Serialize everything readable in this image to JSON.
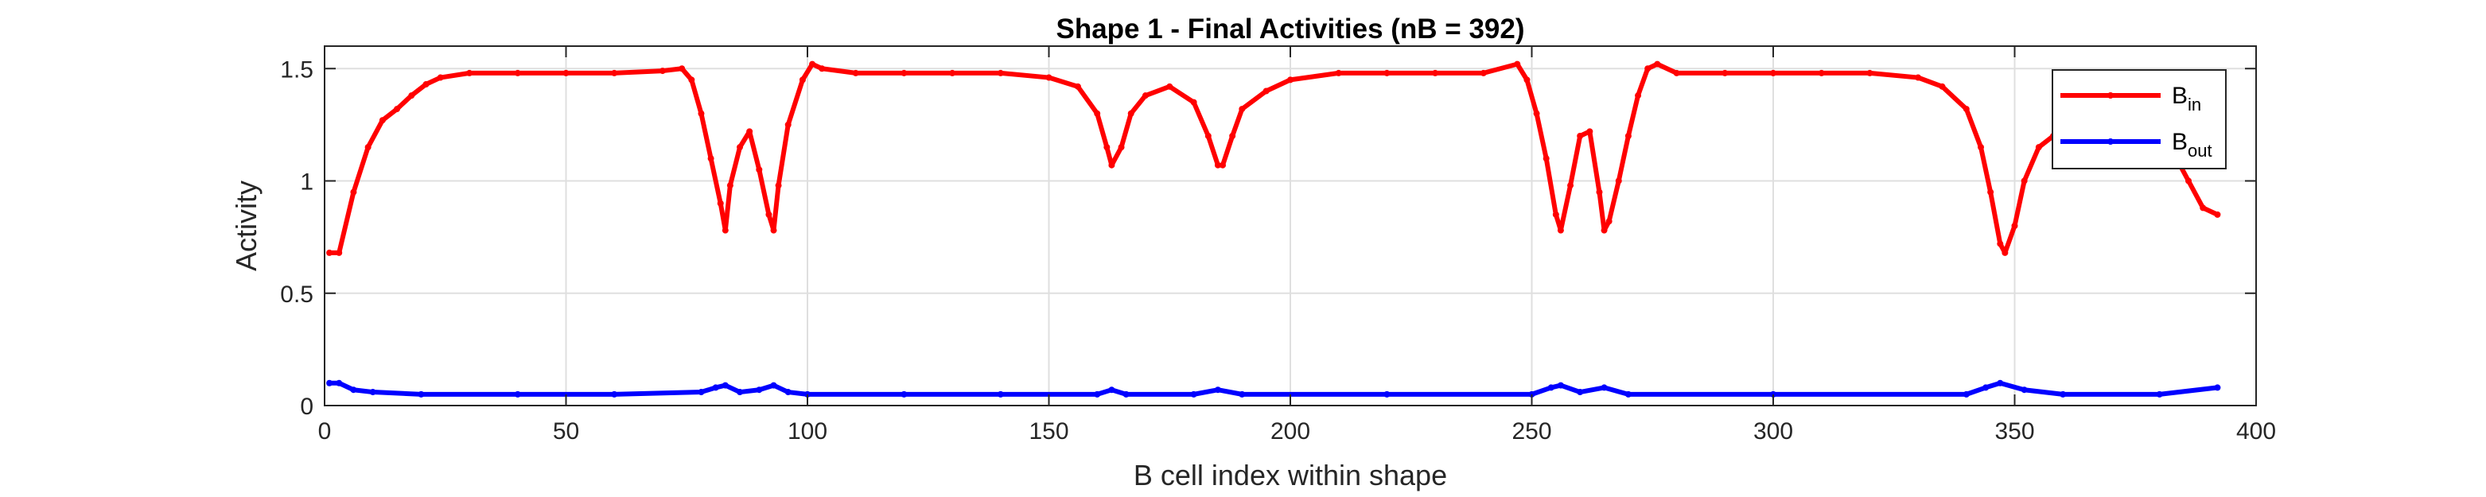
{
  "chart_data": {
    "type": "line",
    "title": "Shape 1 - Final Activities (nB = 392)",
    "xlabel": "B cell index within shape",
    "ylabel": "Activity",
    "xlim": [
      0,
      400
    ],
    "ylim": [
      0,
      1.6
    ],
    "xticks": [
      0,
      50,
      100,
      150,
      200,
      250,
      300,
      350,
      400
    ],
    "yticks": [
      0,
      0.5,
      1,
      1.5
    ],
    "xtick_labels": [
      "0",
      "50",
      "100",
      "150",
      "200",
      "250",
      "300",
      "350",
      "400"
    ],
    "ytick_labels": [
      "0",
      "0.5",
      "1",
      "1.5"
    ],
    "grid": true,
    "legend_position": "top-right",
    "n_points": 392,
    "series": [
      {
        "name": "B",
        "subscript": "in",
        "color": "#ff0000",
        "marker": "dot",
        "x": [
          1,
          3,
          6,
          9,
          12,
          15,
          18,
          21,
          24,
          30,
          40,
          50,
          60,
          70,
          74,
          76,
          78,
          80,
          82,
          83,
          84,
          86,
          88,
          90,
          92,
          93,
          94,
          96,
          99,
          101,
          103,
          110,
          120,
          130,
          140,
          150,
          156,
          160,
          162,
          163,
          165,
          167,
          170,
          175,
          180,
          183,
          185,
          186,
          188,
          190,
          195,
          200,
          210,
          220,
          230,
          240,
          247,
          249,
          251,
          253,
          255,
          256,
          258,
          260,
          262,
          264,
          265,
          266,
          268,
          270,
          272,
          274,
          276,
          280,
          290,
          300,
          310,
          320,
          330,
          335,
          340,
          343,
          345,
          347,
          348,
          350,
          352,
          355,
          358,
          361,
          364,
          367,
          370,
          374,
          377,
          380,
          383,
          386,
          389,
          392
        ],
        "y": [
          0.68,
          0.68,
          0.95,
          1.15,
          1.27,
          1.32,
          1.38,
          1.43,
          1.46,
          1.48,
          1.48,
          1.48,
          1.48,
          1.49,
          1.5,
          1.45,
          1.3,
          1.1,
          0.9,
          0.78,
          0.98,
          1.15,
          1.22,
          1.05,
          0.85,
          0.78,
          0.98,
          1.25,
          1.45,
          1.52,
          1.5,
          1.48,
          1.48,
          1.48,
          1.48,
          1.46,
          1.42,
          1.3,
          1.15,
          1.07,
          1.15,
          1.3,
          1.38,
          1.42,
          1.35,
          1.2,
          1.07,
          1.07,
          1.2,
          1.32,
          1.4,
          1.45,
          1.48,
          1.48,
          1.48,
          1.48,
          1.52,
          1.45,
          1.3,
          1.1,
          0.85,
          0.78,
          0.98,
          1.2,
          1.22,
          0.95,
          0.78,
          0.82,
          1.0,
          1.2,
          1.38,
          1.5,
          1.52,
          1.48,
          1.48,
          1.48,
          1.48,
          1.48,
          1.46,
          1.42,
          1.32,
          1.15,
          0.95,
          0.72,
          0.68,
          0.8,
          1.0,
          1.15,
          1.2,
          1.3,
          1.38,
          1.44,
          1.46,
          1.42,
          1.35,
          1.25,
          1.12,
          1.0,
          0.88,
          0.85
        ]
      },
      {
        "name": "B",
        "subscript": "out",
        "color": "#0000ff",
        "marker": "dot",
        "x": [
          1,
          3,
          6,
          10,
          20,
          40,
          60,
          78,
          81,
          83,
          86,
          90,
          93,
          96,
          100,
          120,
          140,
          160,
          163,
          166,
          180,
          185,
          190,
          220,
          250,
          254,
          256,
          260,
          265,
          270,
          300,
          340,
          344,
          347,
          352,
          360,
          380,
          392
        ],
        "y": [
          0.1,
          0.1,
          0.07,
          0.06,
          0.05,
          0.05,
          0.05,
          0.06,
          0.08,
          0.09,
          0.06,
          0.07,
          0.09,
          0.06,
          0.05,
          0.05,
          0.05,
          0.05,
          0.07,
          0.05,
          0.05,
          0.07,
          0.05,
          0.05,
          0.05,
          0.08,
          0.09,
          0.06,
          0.08,
          0.05,
          0.05,
          0.05,
          0.08,
          0.1,
          0.07,
          0.05,
          0.05,
          0.08
        ]
      }
    ]
  }
}
